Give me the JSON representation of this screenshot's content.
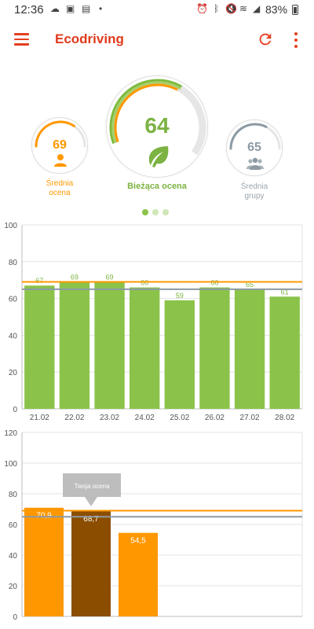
{
  "status_bar": {
    "time": "12:36",
    "battery": "83%"
  },
  "app_bar": {
    "title": "Ecodriving"
  },
  "scores": {
    "personal": {
      "value": "69",
      "label_line1": "Średnia",
      "label_line2": "ocena",
      "arc_fraction": 0.69
    },
    "current": {
      "value": "64",
      "label": "Bieżąca ocena",
      "arc_fraction": 0.64
    },
    "group": {
      "value": "65",
      "label_line1": "Średnia",
      "label_line2": "grupy",
      "arc_fraction": 0.65
    }
  },
  "pager": {
    "pages": 3,
    "active": 0
  },
  "colors": {
    "brand_red": "#e03a1d",
    "green": "#8bc34a",
    "orange": "#ff9800",
    "grey": "#8d9aa3",
    "brown": "#8b4d00"
  },
  "chart_data": [
    {
      "type": "bar",
      "categories": [
        "21.02",
        "22.02",
        "23.02",
        "24.02",
        "25.02",
        "26.02",
        "27.02",
        "28.02"
      ],
      "values": [
        67,
        69,
        69,
        66,
        59,
        66,
        65,
        61
      ],
      "data_labels": [
        "67",
        "69",
        "69",
        "66",
        "59",
        "66",
        "65",
        "61"
      ],
      "ylim": [
        0,
        100
      ],
      "yticks": [
        "0",
        "20",
        "40",
        "60",
        "80",
        "100"
      ],
      "reference_lines": [
        {
          "value": 69,
          "color": "#ff9800"
        },
        {
          "value": 65,
          "color": "#8d9aa3"
        }
      ],
      "grid": true
    },
    {
      "type": "bar",
      "categories": [
        "",
        "",
        ""
      ],
      "values": [
        70.9,
        68.7,
        54.5
      ],
      "data_labels": [
        "70,9",
        "68,7",
        "54,5"
      ],
      "bar_colors": [
        "#ff9800",
        "#8b4d00",
        "#ff9800"
      ],
      "ylim": [
        0,
        120
      ],
      "yticks": [
        "0",
        "20",
        "40",
        "60",
        "80",
        "100",
        "120"
      ],
      "reference_lines": [
        {
          "value": 69,
          "color": "#ff9800"
        },
        {
          "value": 65,
          "color": "#8d9aa3"
        }
      ],
      "annotation": {
        "text": "Twoja ocena",
        "bar_index": 1
      },
      "grid": true
    }
  ]
}
